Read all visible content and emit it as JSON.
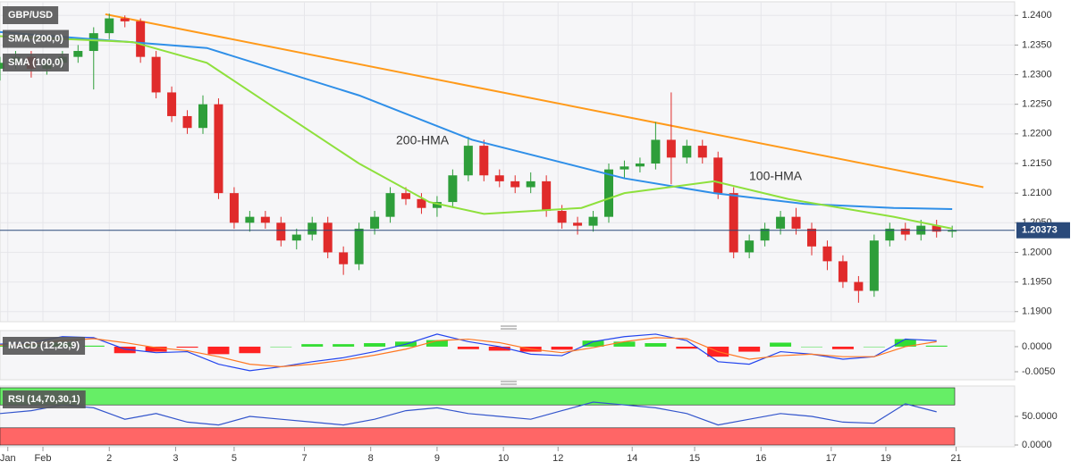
{
  "chart_data": [
    {
      "type": "candlestick",
      "legend": [
        "GBP/USD",
        "SMA (200,0)",
        "SMA (100,0)"
      ],
      "xlim": [
        0,
        260
      ],
      "xticks": [
        {
          "value": 2,
          "label": "Jan"
        },
        {
          "value": 11,
          "label": "Feb"
        },
        {
          "value": 28,
          "label": "2"
        },
        {
          "value": 45,
          "label": "3"
        },
        {
          "value": 60,
          "label": "5"
        },
        {
          "value": 78,
          "label": "7"
        },
        {
          "value": 95,
          "label": "8"
        },
        {
          "value": 112,
          "label": "9"
        },
        {
          "value": 129,
          "label": "10"
        },
        {
          "value": 143,
          "label": "12"
        },
        {
          "value": 162,
          "label": "14"
        },
        {
          "value": 178,
          "label": "15"
        },
        {
          "value": 195,
          "label": "16"
        },
        {
          "value": 213,
          "label": "17"
        },
        {
          "value": 227,
          "label": "19"
        },
        {
          "value": 245,
          "label": "21"
        }
      ],
      "ylim": [
        1.1883,
        1.2423
      ],
      "yticks": [
        {
          "value": 1.19,
          "label": "1.1900"
        },
        {
          "value": 1.195,
          "label": "1.1950"
        },
        {
          "value": 1.2,
          "label": "1.2000"
        },
        {
          "value": 1.205,
          "label": "1.2050"
        },
        {
          "value": 1.21,
          "label": "1.2100"
        },
        {
          "value": 1.215,
          "label": "1.2150"
        },
        {
          "value": 1.22,
          "label": "1.2200"
        },
        {
          "value": 1.225,
          "label": "1.2250"
        },
        {
          "value": 1.23,
          "label": "1.2300"
        },
        {
          "value": 1.235,
          "label": "1.2350"
        },
        {
          "value": 1.24,
          "label": "1.2400"
        }
      ],
      "grid": true,
      "up_color": "#2e9e3a",
      "down_color": "#e02b2b",
      "x": [
        0,
        4,
        8,
        12,
        16,
        20,
        24,
        28,
        32,
        36,
        40,
        44,
        48,
        52,
        56,
        60,
        64,
        68,
        72,
        76,
        80,
        84,
        88,
        92,
        96,
        100,
        104,
        108,
        112,
        116,
        120,
        124,
        128,
        132,
        136,
        140,
        144,
        148,
        152,
        156,
        160,
        164,
        168,
        172,
        176,
        180,
        184,
        188,
        192,
        196,
        200,
        204,
        208,
        212,
        216,
        220,
        224,
        228,
        232,
        236,
        240,
        244
      ],
      "open": [
        1.231,
        1.232,
        1.233,
        1.231,
        1.232,
        1.233,
        1.234,
        1.237,
        1.2395,
        1.239,
        1.233,
        1.227,
        1.223,
        1.221,
        1.225,
        1.21,
        1.205,
        1.206,
        1.205,
        1.202,
        1.203,
        1.205,
        1.2,
        1.198,
        1.204,
        1.206,
        1.21,
        1.209,
        1.2075,
        1.2085,
        1.213,
        1.218,
        1.213,
        1.212,
        1.211,
        1.212,
        1.207,
        1.205,
        1.2045,
        1.206,
        1.214,
        1.2145,
        1.215,
        1.219,
        1.216,
        1.218,
        1.216,
        1.21,
        1.2,
        1.202,
        1.204,
        1.206,
        1.204,
        1.201,
        1.1985,
        1.195,
        1.1935,
        1.202,
        1.204,
        1.203,
        1.2045,
        1.2035
      ],
      "high": [
        1.233,
        1.234,
        1.234,
        1.233,
        1.234,
        1.235,
        1.238,
        1.2403,
        1.24,
        1.2395,
        1.234,
        1.228,
        1.224,
        1.2265,
        1.226,
        1.211,
        1.207,
        1.207,
        1.206,
        1.204,
        1.206,
        1.206,
        1.201,
        1.205,
        1.207,
        1.211,
        1.211,
        1.21,
        1.2095,
        1.214,
        1.2195,
        1.219,
        1.214,
        1.213,
        1.2135,
        1.213,
        1.208,
        1.206,
        1.207,
        1.215,
        1.2155,
        1.216,
        1.222,
        1.227,
        1.219,
        1.219,
        1.217,
        1.211,
        1.203,
        1.205,
        1.207,
        1.2075,
        1.205,
        1.202,
        1.1995,
        1.196,
        1.203,
        1.205,
        1.205,
        1.2055,
        1.2055,
        1.2045
      ],
      "low": [
        1.229,
        1.231,
        1.2295,
        1.23,
        1.231,
        1.232,
        1.2275,
        1.236,
        1.238,
        1.232,
        1.226,
        1.222,
        1.22,
        1.22,
        1.209,
        1.204,
        1.2035,
        1.204,
        1.201,
        1.2005,
        1.202,
        1.199,
        1.1962,
        1.197,
        1.203,
        1.205,
        1.208,
        1.2065,
        1.206,
        1.2075,
        1.212,
        1.212,
        1.211,
        1.21,
        1.21,
        1.206,
        1.204,
        1.203,
        1.2035,
        1.205,
        1.2125,
        1.2135,
        1.214,
        1.2115,
        1.215,
        1.215,
        1.209,
        1.199,
        1.199,
        1.201,
        1.203,
        1.203,
        1.1995,
        1.197,
        1.194,
        1.1915,
        1.1925,
        1.201,
        1.202,
        1.202,
        1.2025,
        1.2025
      ],
      "close": [
        1.232,
        1.233,
        1.231,
        1.232,
        1.233,
        1.234,
        1.237,
        1.2395,
        1.239,
        1.233,
        1.227,
        1.223,
        1.221,
        1.225,
        1.21,
        1.205,
        1.206,
        1.205,
        1.202,
        1.203,
        1.205,
        1.2,
        1.198,
        1.204,
        1.206,
        1.21,
        1.209,
        1.2075,
        1.2085,
        1.213,
        1.218,
        1.213,
        1.212,
        1.211,
        1.212,
        1.207,
        1.205,
        1.2045,
        1.206,
        1.214,
        1.2145,
        1.215,
        1.219,
        1.216,
        1.218,
        1.216,
        1.21,
        1.2,
        1.202,
        1.204,
        1.206,
        1.204,
        1.201,
        1.1985,
        1.195,
        1.1935,
        1.202,
        1.204,
        1.203,
        1.2045,
        1.2035,
        1.2037
      ],
      "series": [
        {
          "name": "200-HMA",
          "color": "#2f8fe8",
          "x": [
            0,
            53,
            92,
            121,
            160,
            183,
            206,
            229,
            244
          ],
          "values": [
            1.2372,
            1.2345,
            1.2265,
            1.219,
            1.2125,
            1.21,
            1.2082,
            1.2075,
            1.2073
          ]
        },
        {
          "name": "100-HMA",
          "color": "#8ee03c",
          "x": [
            0,
            34,
            53,
            69,
            92,
            110,
            124,
            149,
            160,
            183,
            202,
            229,
            244
          ],
          "values": [
            1.2365,
            1.2355,
            1.232,
            1.225,
            1.215,
            1.2085,
            1.2065,
            1.2075,
            1.21,
            1.212,
            1.209,
            1.206,
            1.204
          ]
        }
      ],
      "trendline": {
        "color": "#ff9a1a",
        "x": [
          27,
          252
        ],
        "values": [
          1.2402,
          1.211
        ]
      },
      "last_price": 1.20373,
      "last_price_color": "#2a4a7a"
    },
    {
      "type": "macd",
      "legend": "MACD (12,26,9)",
      "xlim": [
        0,
        260
      ],
      "ylim": [
        -0.0066,
        0.0032
      ],
      "yticks": [
        {
          "value": 0,
          "label": "0.0000"
        },
        {
          "value": -0.005,
          "label": "-0.0050"
        }
      ],
      "x": [
        0,
        8,
        16,
        24,
        32,
        40,
        48,
        56,
        64,
        72,
        80,
        88,
        96,
        104,
        112,
        120,
        128,
        136,
        144,
        152,
        160,
        168,
        176,
        184,
        192,
        200,
        208,
        216,
        224,
        232,
        240
      ],
      "histogram": [
        0.0002,
        0.0003,
        0.0008,
        0.0002,
        -0.0013,
        -0.001,
        -0.0002,
        -0.0015,
        -0.0013,
        0.0,
        0.0005,
        0.0005,
        0.0007,
        0.001,
        0.0013,
        -0.0005,
        -0.0008,
        -0.001,
        -0.0006,
        0.0012,
        0.001,
        0.0007,
        -0.0004,
        -0.002,
        -0.001,
        0.0008,
        0.0,
        -0.0005,
        0.0,
        0.0015,
        0.0002
      ],
      "up_color": "#33dd33",
      "down_color": "#ff2222",
      "series": [
        {
          "color": "#2244ee",
          "values": [
            0.0005,
            0.0008,
            0.002,
            0.0018,
            -0.0005,
            -0.0012,
            -0.001,
            -0.0035,
            -0.0048,
            -0.004,
            -0.003,
            -0.0022,
            -0.001,
            0.0005,
            0.0025,
            0.001,
            0.0,
            -0.0015,
            -0.0018,
            0.001,
            0.002,
            0.0025,
            0.0012,
            -0.003,
            -0.0035,
            -0.001,
            -0.0015,
            -0.0025,
            -0.002,
            0.0015,
            0.0012
          ]
        },
        {
          "color": "#ff7722",
          "values": [
            0.0003,
            0.0005,
            0.0012,
            0.0016,
            0.0008,
            -0.0002,
            -0.0008,
            -0.002,
            -0.0035,
            -0.004,
            -0.0035,
            -0.0027,
            -0.0017,
            -0.0005,
            0.0012,
            0.0015,
            0.0008,
            -0.0005,
            -0.0012,
            -0.0002,
            0.001,
            0.0018,
            0.0016,
            -0.001,
            -0.0025,
            -0.0018,
            -0.0015,
            -0.002,
            -0.002,
            0.0,
            0.001
          ]
        }
      ]
    },
    {
      "type": "rsi",
      "legend": "RSI (14,70,30,1)",
      "xlim": [
        0,
        260
      ],
      "ylim": [
        -3.1,
        103.1
      ],
      "yticks": [
        {
          "value": 50,
          "label": "50.0000"
        },
        {
          "value": 0,
          "label": "0.0000"
        }
      ],
      "zones": [
        {
          "from": 70,
          "to": 100,
          "color": "#66ee66"
        },
        {
          "from": 0,
          "to": 30,
          "color": "#ff6666"
        }
      ],
      "x": [
        0,
        8,
        16,
        24,
        32,
        40,
        48,
        56,
        64,
        72,
        80,
        88,
        96,
        104,
        112,
        120,
        128,
        136,
        144,
        152,
        160,
        168,
        176,
        184,
        192,
        200,
        208,
        216,
        224,
        232,
        240
      ],
      "series": [
        {
          "color": "#3355cc",
          "values": [
            55,
            60,
            70,
            65,
            45,
            55,
            40,
            35,
            50,
            45,
            40,
            35,
            45,
            60,
            65,
            55,
            50,
            45,
            60,
            75,
            70,
            65,
            55,
            35,
            45,
            55,
            50,
            40,
            38,
            72,
            58
          ]
        }
      ]
    }
  ]
}
